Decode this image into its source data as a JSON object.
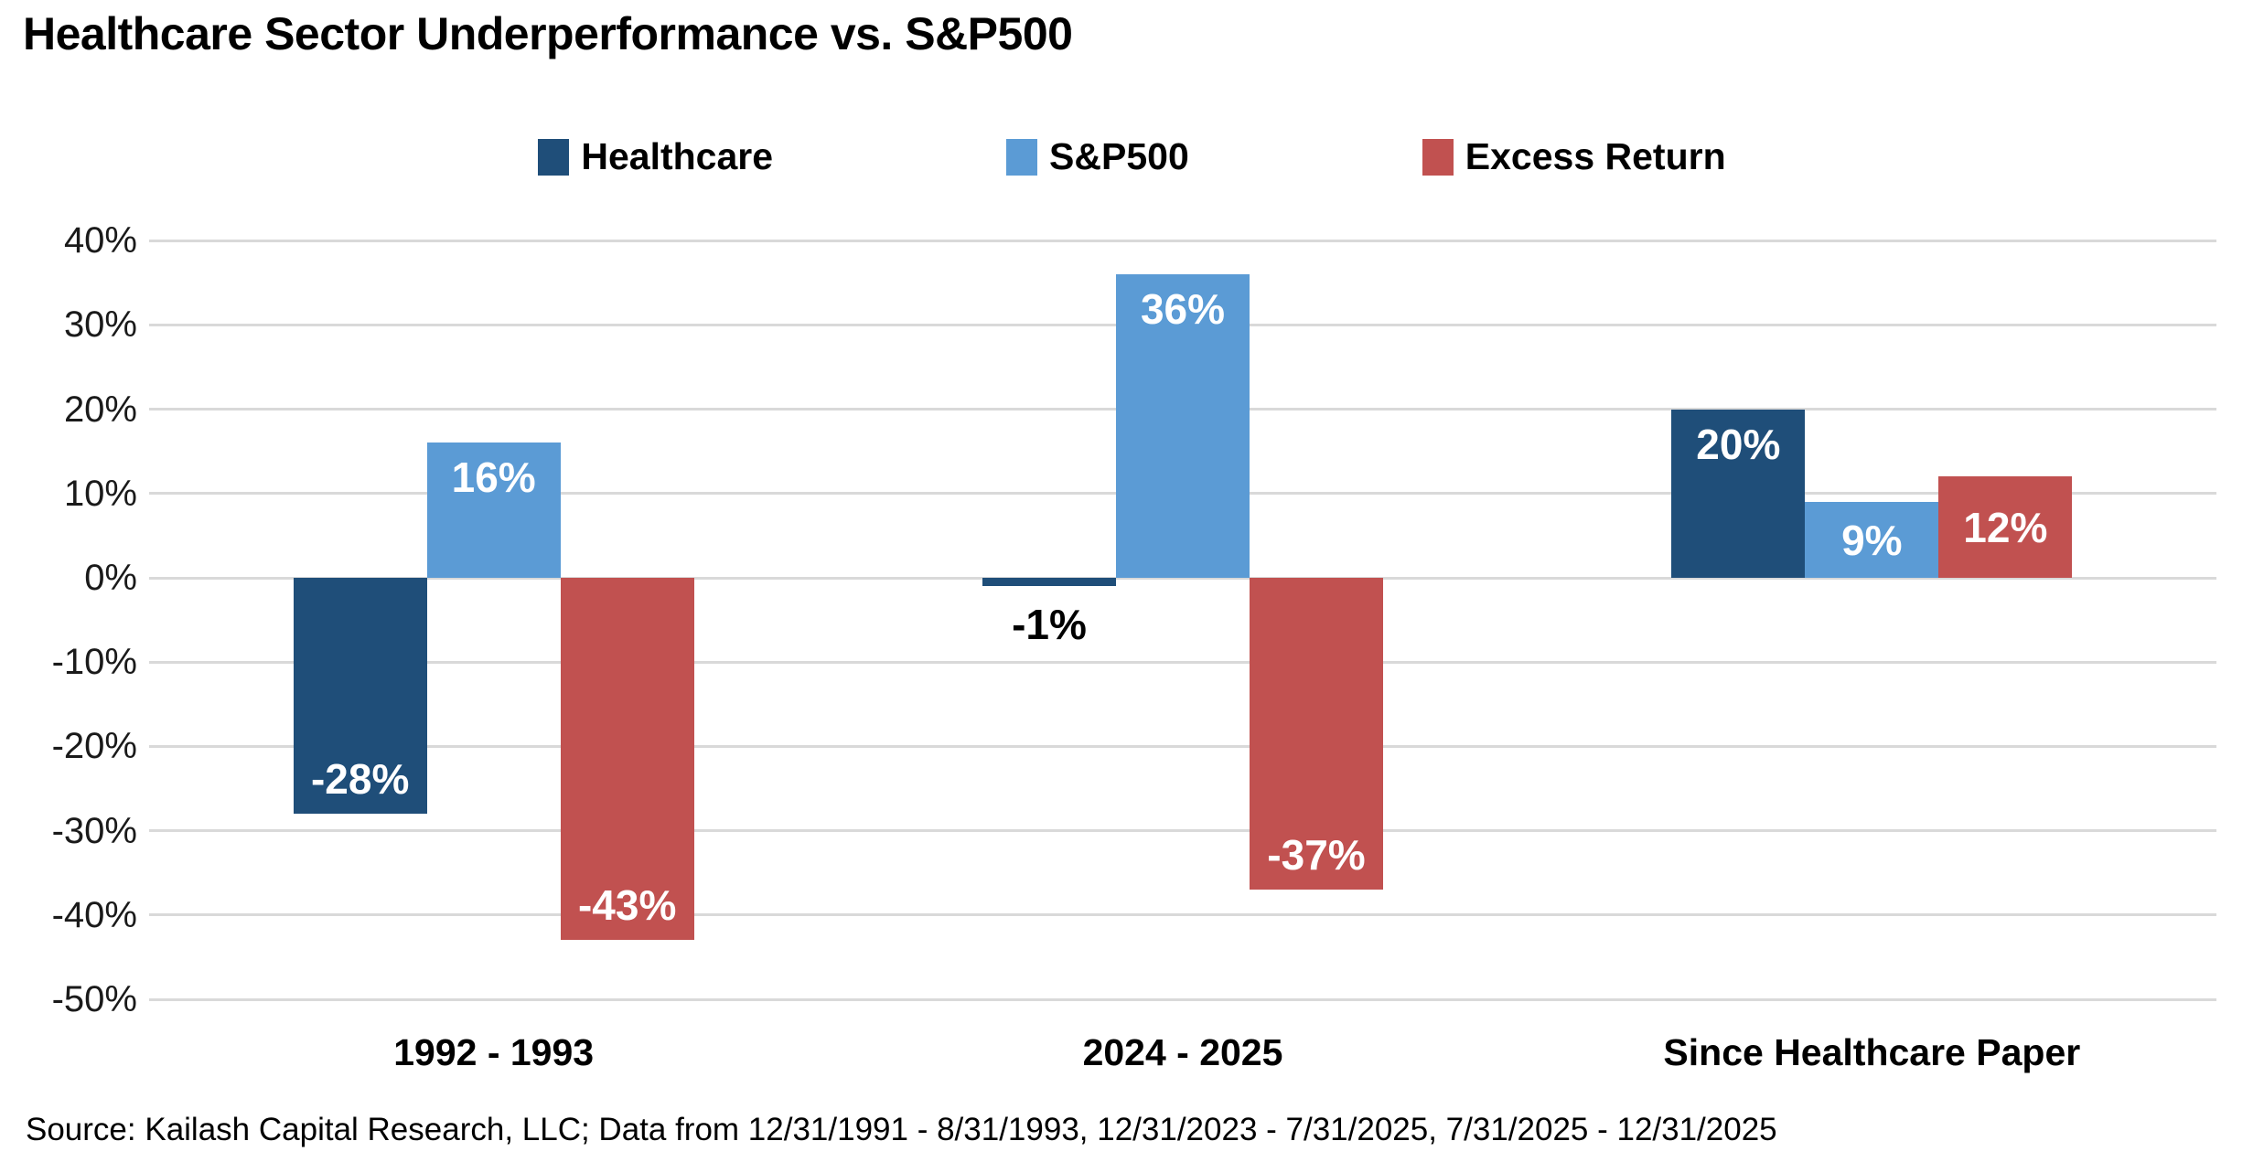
{
  "title": "Healthcare Sector Underperformance vs. S&P500",
  "source_note": "Source: Kailash Capital Research, LLC; Data from 12/31/1991 - 8/31/1993, 12/31/2023 - 7/31/2025, 7/31/2025 - 12/31/2025",
  "colors": {
    "healthcare": "#1F4E79",
    "sp500": "#5B9BD5",
    "excess_return": "#C15150",
    "gridline": "#D9D9D9",
    "background": "#FFFFFF",
    "label_on_bar": "#FFFFFF",
    "label_outside": "#000000"
  },
  "chart_data": {
    "type": "bar",
    "title": "Healthcare Sector Underperformance vs. S&P500",
    "categories": [
      "1992 - 1993",
      "2024 - 2025",
      "Since Healthcare Paper"
    ],
    "series": [
      {
        "name": "Healthcare",
        "color": "#1F4E79",
        "values": [
          -28,
          -1,
          20
        ],
        "labels": [
          "-28%",
          "-1%",
          "20%"
        ],
        "label_pos": [
          "inside-bottom",
          "below",
          "inside-top"
        ]
      },
      {
        "name": "S&P500",
        "color": "#5B9BD5",
        "values": [
          16,
          36,
          9
        ],
        "labels": [
          "16%",
          "36%",
          "9%"
        ],
        "label_pos": [
          "inside-top",
          "inside-top",
          "center"
        ]
      },
      {
        "name": "Excess Return",
        "color": "#C15150",
        "values": [
          -43,
          -37,
          12
        ],
        "labels": [
          "-43%",
          "-37%",
          "12%"
        ],
        "label_pos": [
          "inside-bottom",
          "inside-bottom",
          "center"
        ]
      }
    ],
    "xlabel": "",
    "ylabel": "",
    "ylim": [
      -50,
      40
    ],
    "yticks": {
      "values": [
        40,
        30,
        20,
        10,
        0,
        -10,
        -20,
        -30,
        -40,
        -50
      ],
      "labels": [
        "40%",
        "30%",
        "20%",
        "10%",
        "0%",
        "-10%",
        "-20%",
        "-30%",
        "-40%",
        "-50%"
      ]
    },
    "grid": true,
    "legend_position": "top"
  }
}
